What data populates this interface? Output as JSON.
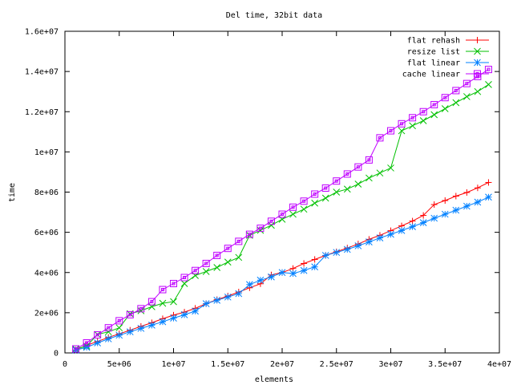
{
  "chart_data": {
    "type": "line",
    "title": "Del time, 32bit data",
    "xlabel": "elements",
    "ylabel": "time",
    "xlim": [
      0,
      40000000
    ],
    "ylim": [
      0,
      16000000
    ],
    "x_ticks": [
      {
        "value": 0,
        "label": "0"
      },
      {
        "value": 5000000,
        "label": "5e+06"
      },
      {
        "value": 10000000,
        "label": "1e+07"
      },
      {
        "value": 15000000,
        "label": "1.5e+07"
      },
      {
        "value": 20000000,
        "label": "2e+07"
      },
      {
        "value": 25000000,
        "label": "2.5e+07"
      },
      {
        "value": 30000000,
        "label": "3e+07"
      },
      {
        "value": 35000000,
        "label": "3.5e+07"
      },
      {
        "value": 40000000,
        "label": "4e+07"
      }
    ],
    "y_ticks": [
      {
        "value": 0,
        "label": "0"
      },
      {
        "value": 2000000,
        "label": "2e+06"
      },
      {
        "value": 4000000,
        "label": "4e+06"
      },
      {
        "value": 6000000,
        "label": "6e+06"
      },
      {
        "value": 8000000,
        "label": "8e+06"
      },
      {
        "value": 10000000,
        "label": "1e+07"
      },
      {
        "value": 12000000,
        "label": "1.2e+07"
      },
      {
        "value": 14000000,
        "label": "1.4e+07"
      },
      {
        "value": 16000000,
        "label": "1.6e+07"
      }
    ],
    "grid": false,
    "legend_position": "top-right",
    "x": [
      1000000,
      2000000,
      3000000,
      4000000,
      5000000,
      6000000,
      7000000,
      8000000,
      9000000,
      10000000,
      11000000,
      12000000,
      13000000,
      14000000,
      15000000,
      16000000,
      17000000,
      18000000,
      19000000,
      20000000,
      21000000,
      22000000,
      23000000,
      24000000,
      25000000,
      26000000,
      27000000,
      28000000,
      29000000,
      30000000,
      31000000,
      32000000,
      33000000,
      34000000,
      35000000,
      36000000,
      37000000,
      38000000,
      39000000
    ],
    "series": [
      {
        "name": "flat rehash",
        "color": "#ff0000",
        "marker": "plus",
        "values": [
          150000,
          380000,
          570000,
          770000,
          950000,
          1130000,
          1320000,
          1500000,
          1700000,
          1880000,
          2030000,
          2220000,
          2450000,
          2650000,
          2830000,
          3030000,
          3240000,
          3440000,
          3880000,
          4000000,
          4200000,
          4450000,
          4650000,
          4850000,
          5030000,
          5220000,
          5420000,
          5650000,
          5850000,
          6080000,
          6320000,
          6560000,
          6840000,
          7380000,
          7580000,
          7800000,
          7980000,
          8210000,
          8480000
        ]
      },
      {
        "name": "resize list",
        "color": "#00c000",
        "marker": "cross",
        "values": [
          200000,
          340000,
          920000,
          1050000,
          1250000,
          1950000,
          2100000,
          2300000,
          2470000,
          2550000,
          3450000,
          3850000,
          4050000,
          4250000,
          4520000,
          4750000,
          5850000,
          6100000,
          6350000,
          6650000,
          6900000,
          7150000,
          7450000,
          7700000,
          8000000,
          8150000,
          8400000,
          8700000,
          8950000,
          9200000,
          11050000,
          11300000,
          11550000,
          11850000,
          12150000,
          12450000,
          12750000,
          13000000,
          13350000
        ]
      },
      {
        "name": "flat linear",
        "color": "#0080ff",
        "marker": "star",
        "values": [
          140000,
          280000,
          500000,
          700000,
          880000,
          1050000,
          1220000,
          1380000,
          1550000,
          1730000,
          1900000,
          2080000,
          2450000,
          2620000,
          2780000,
          2950000,
          3400000,
          3620000,
          3780000,
          4000000,
          3950000,
          4100000,
          4280000,
          4850000,
          5000000,
          5150000,
          5330000,
          5520000,
          5720000,
          5900000,
          6090000,
          6280000,
          6480000,
          6700000,
          6900000,
          7100000,
          7300000,
          7500000,
          7750000
        ]
      },
      {
        "name": "cache linear",
        "color": "#c000ff",
        "marker": "square",
        "values": [
          200000,
          500000,
          900000,
          1250000,
          1600000,
          1900000,
          2200000,
          2550000,
          3150000,
          3450000,
          3750000,
          4100000,
          4450000,
          4850000,
          5200000,
          5550000,
          5900000,
          6200000,
          6550000,
          6900000,
          7250000,
          7550000,
          7900000,
          8200000,
          8550000,
          8900000,
          9250000,
          9600000,
          10700000,
          11050000,
          11400000,
          11700000,
          12000000,
          12350000,
          12700000,
          13050000,
          13400000,
          13750000,
          14100000
        ]
      }
    ]
  }
}
